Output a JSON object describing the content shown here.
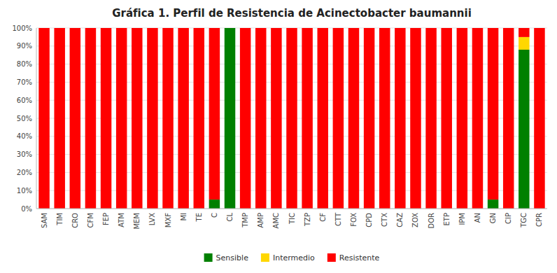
{
  "chart_data": {
    "type": "bar",
    "stacked": true,
    "grid": true,
    "legend": "bottom",
    "title": "Gráfica 1. Perfil de Resistencia de Acinectobacter baumannii",
    "categories": [
      "SAM",
      "TIM",
      "CRO",
      "CFM",
      "FEP",
      "ATM",
      "MEM",
      "LVX",
      "MXF",
      "MI",
      "TE",
      "C",
      "CL",
      "TMP",
      "AMP",
      "AMC",
      "TIC",
      "TZP",
      "CF",
      "CTT",
      "FOX",
      "CPD",
      "CTX",
      "CAZ",
      "ZOX",
      "DOR",
      "ETP",
      "IPM",
      "AN",
      "GN",
      "CIP",
      "TGC",
      "CPR"
    ],
    "series": [
      {
        "name": "Sensible",
        "color": "#008000",
        "values": [
          0,
          0,
          0,
          0,
          0,
          0,
          0,
          0,
          0,
          0,
          0,
          5,
          100,
          0,
          0,
          0,
          0,
          0,
          0,
          0,
          0,
          0,
          0,
          0,
          0,
          0,
          0,
          0,
          0,
          5,
          0,
          88,
          0
        ]
      },
      {
        "name": "Intermedio",
        "color": "#FFD700",
        "values": [
          0,
          0,
          0,
          0,
          0,
          0,
          0,
          0,
          0,
          0,
          0,
          0,
          0,
          0,
          0,
          0,
          0,
          0,
          0,
          0,
          0,
          0,
          0,
          0,
          0,
          0,
          0,
          0,
          0,
          0,
          0,
          7,
          0
        ]
      },
      {
        "name": "Resistente",
        "color": "#FF0000",
        "values": [
          100,
          100,
          100,
          100,
          100,
          100,
          100,
          100,
          100,
          100,
          100,
          95,
          0,
          100,
          100,
          100,
          100,
          100,
          100,
          100,
          100,
          100,
          100,
          100,
          100,
          100,
          100,
          100,
          100,
          95,
          100,
          5,
          100
        ]
      }
    ],
    "ylim": [
      0,
      100
    ],
    "yticks": [
      {
        "value": 0,
        "label": "0%"
      },
      {
        "value": 10,
        "label": "10%"
      },
      {
        "value": 20,
        "label": "20%"
      },
      {
        "value": 30,
        "label": "30%"
      },
      {
        "value": 40,
        "label": "40%"
      },
      {
        "value": 50,
        "label": "50%"
      },
      {
        "value": 60,
        "label": "60%"
      },
      {
        "value": 70,
        "label": "70%"
      },
      {
        "value": 80,
        "label": "80%"
      },
      {
        "value": 90,
        "label": "90%"
      },
      {
        "value": 100,
        "label": "100%"
      }
    ]
  }
}
